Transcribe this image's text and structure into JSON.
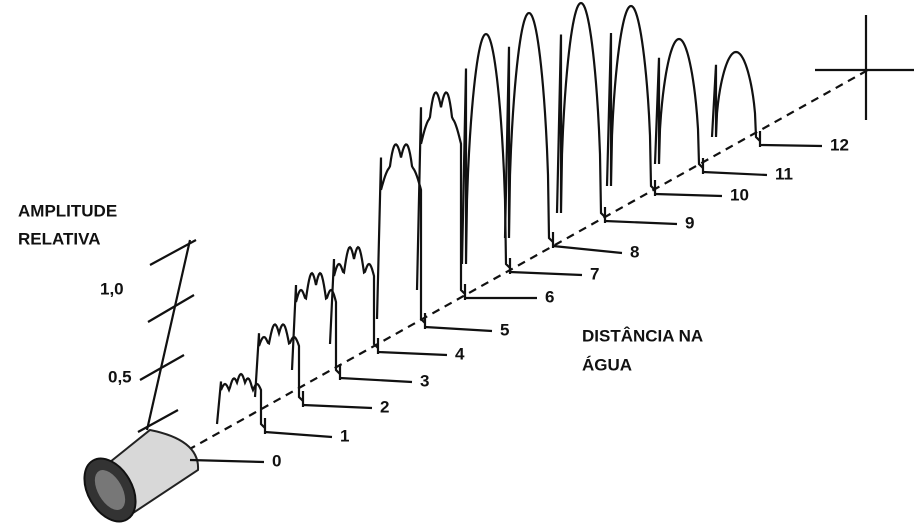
{
  "axis": {
    "title_lines": [
      "AMPLITUDE",
      "RELATIVA"
    ],
    "tick_labels": [
      "1,0",
      "0,5"
    ]
  },
  "distance_label": [
    "DISTÂNCIA NA",
    "ÁGUA"
  ],
  "markers": [
    "0",
    "1",
    "2",
    "3",
    "4",
    "5",
    "6",
    "7",
    "8",
    "9",
    "10",
    "11",
    "12"
  ]
}
